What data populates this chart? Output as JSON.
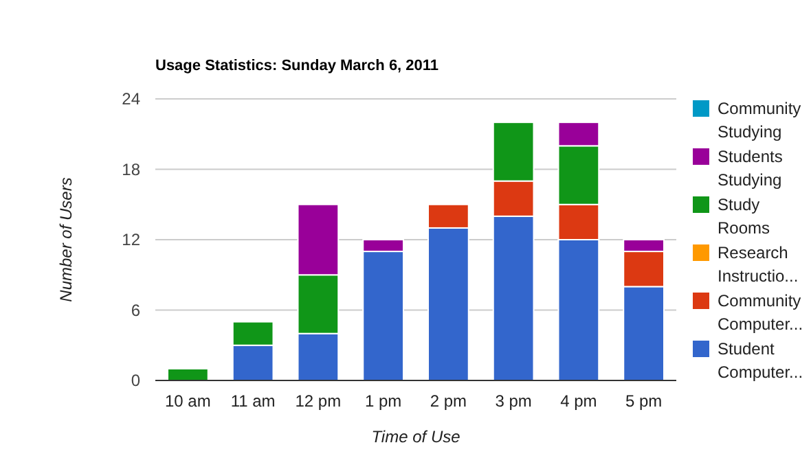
{
  "chart_data": {
    "type": "bar",
    "title": "Usage Statistics: Sunday March 6, 2011",
    "xlabel": "Time of Use",
    "ylabel": "Number of Users",
    "categories": [
      "10 am",
      "11 am",
      "12 pm",
      "1 pm",
      "2 pm",
      "3 pm",
      "4 pm",
      "5 pm"
    ],
    "stacked": true,
    "ylim": [
      0,
      24
    ],
    "yticks": [
      0,
      6,
      12,
      18,
      24
    ],
    "grid": "y",
    "legend": "right",
    "series": [
      {
        "name": "Student Computer...",
        "color": "#3366cc",
        "values": [
          0,
          3,
          4,
          11,
          13,
          14,
          12,
          8
        ]
      },
      {
        "name": "Community Computer...",
        "color": "#dc3912",
        "values": [
          0,
          0,
          0,
          0,
          2,
          3,
          3,
          3
        ]
      },
      {
        "name": "Research Instructio...",
        "color": "#ff9900",
        "values": [
          0,
          0,
          0,
          0,
          0,
          0,
          0,
          0
        ]
      },
      {
        "name": "Study Rooms",
        "color": "#109618",
        "values": [
          1,
          2,
          5,
          0,
          0,
          5,
          5,
          0
        ]
      },
      {
        "name": "Students Studying",
        "color": "#990099",
        "values": [
          0,
          0,
          6,
          1,
          0,
          0,
          2,
          1
        ]
      },
      {
        "name": "Community Studying",
        "color": "#0099c6",
        "values": [
          0,
          0,
          0,
          0,
          0,
          0,
          0,
          0
        ]
      }
    ]
  }
}
